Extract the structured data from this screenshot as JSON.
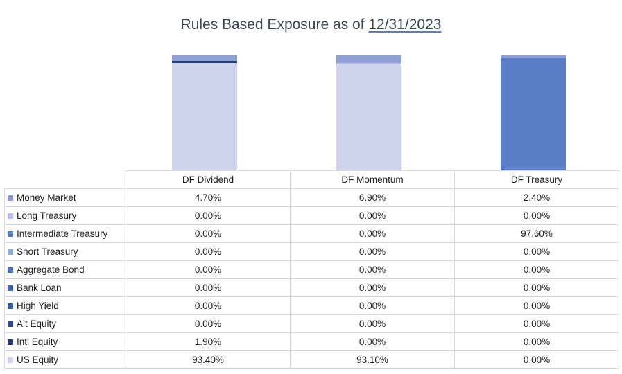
{
  "title": {
    "prefix": "Rules Based Exposure as of ",
    "date": "12/31/2023"
  },
  "chart_data": {
    "type": "bar",
    "stacked": true,
    "categories": [
      "DF Dividend",
      "DF Momentum",
      "DF Treasury"
    ],
    "ylim": [
      0,
      100
    ],
    "series": [
      {
        "name": "Money Market",
        "color": "#8ea0d6",
        "values": [
          4.7,
          6.9,
          2.4
        ],
        "labels": [
          "4.70%",
          "6.90%",
          "2.40%"
        ]
      },
      {
        "name": "Long Treasury",
        "color": "#b6c1e6",
        "values": [
          0,
          0,
          0
        ],
        "labels": [
          "0.00%",
          "0.00%",
          "0.00%"
        ]
      },
      {
        "name": "Intermediate Treasury",
        "color": "#5b7ec8",
        "values": [
          0,
          0,
          97.6
        ],
        "labels": [
          "0.00%",
          "0.00%",
          "97.60%"
        ]
      },
      {
        "name": "Short Treasury",
        "color": "#8fa8d8",
        "values": [
          0,
          0,
          0
        ],
        "labels": [
          "0.00%",
          "0.00%",
          "0.00%"
        ]
      },
      {
        "name": "Aggregate Bond",
        "color": "#4a70c4",
        "values": [
          0,
          0,
          0
        ],
        "labels": [
          "0.00%",
          "0.00%",
          "0.00%"
        ]
      },
      {
        "name": "Bank Loan",
        "color": "#3e62b0",
        "values": [
          0,
          0,
          0
        ],
        "labels": [
          "0.00%",
          "0.00%",
          "0.00%"
        ]
      },
      {
        "name": "High Yield",
        "color": "#355aa6",
        "values": [
          0,
          0,
          0
        ],
        "labels": [
          "0.00%",
          "0.00%",
          "0.00%"
        ]
      },
      {
        "name": "Alt Equity",
        "color": "#2f4e8f",
        "values": [
          0,
          0,
          0
        ],
        "labels": [
          "0.00%",
          "0.00%",
          "0.00%"
        ]
      },
      {
        "name": "Intl Equity",
        "color": "#243e75",
        "values": [
          1.9,
          0,
          0
        ],
        "labels": [
          "1.90%",
          "0.00%",
          "0.00%"
        ]
      },
      {
        "name": "US Equity",
        "color": "#ccd3ea",
        "values": [
          93.4,
          93.1,
          0
        ],
        "labels": [
          "93.40%",
          "93.10%",
          "0.00%"
        ]
      }
    ]
  }
}
